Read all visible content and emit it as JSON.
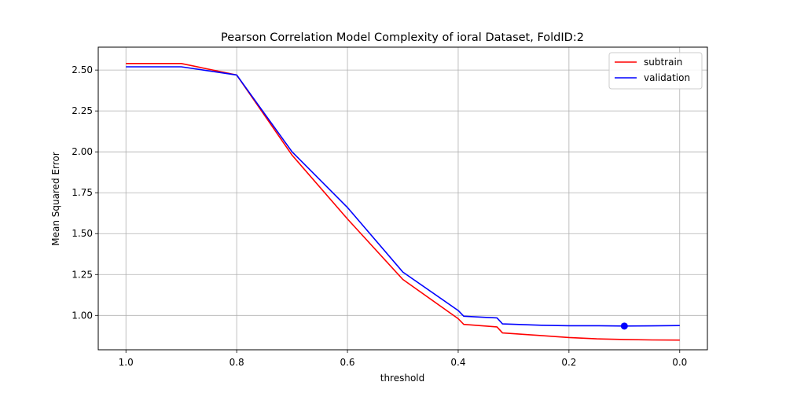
{
  "chart_data": {
    "type": "line",
    "title": "Pearson Correlation Model Complexity of ioral Dataset, FoldID:2",
    "xlabel": "threshold",
    "ylabel": "Mean Squared Error",
    "xlim": [
      1.05,
      -0.05
    ],
    "ylim": [
      0.79,
      2.64
    ],
    "x_inverted": true,
    "grid": true,
    "legend_position": "top-right",
    "x_ticks": [
      1.0,
      0.8,
      0.6,
      0.4,
      0.2,
      0.0
    ],
    "x_tick_labels": [
      "1.0",
      "0.8",
      "0.6",
      "0.4",
      "0.2",
      "0.0"
    ],
    "y_ticks": [
      1.0,
      1.25,
      1.5,
      1.75,
      2.0,
      2.25,
      2.5
    ],
    "y_tick_labels": [
      "1.00",
      "1.25",
      "1.50",
      "1.75",
      "2.00",
      "2.25",
      "2.50"
    ],
    "series": [
      {
        "name": "subtrain",
        "color": "#ff0000",
        "x": [
          1.0,
          0.9,
          0.8,
          0.7,
          0.6,
          0.5,
          0.4,
          0.39,
          0.33,
          0.32,
          0.25,
          0.2,
          0.15,
          0.1,
          0.05,
          0.0
        ],
        "y": [
          2.54,
          2.54,
          2.47,
          1.98,
          1.59,
          1.22,
          0.98,
          0.945,
          0.93,
          0.893,
          0.877,
          0.865,
          0.857,
          0.853,
          0.85,
          0.849
        ]
      },
      {
        "name": "validation",
        "color": "#0000ff",
        "x": [
          1.0,
          0.9,
          0.8,
          0.7,
          0.6,
          0.5,
          0.4,
          0.39,
          0.35,
          0.33,
          0.32,
          0.25,
          0.2,
          0.15,
          0.1,
          0.05,
          0.0
        ],
        "y": [
          2.52,
          2.52,
          2.47,
          2.0,
          1.66,
          1.265,
          1.03,
          0.995,
          0.988,
          0.985,
          0.948,
          0.94,
          0.937,
          0.937,
          0.935,
          0.936,
          0.938
        ]
      }
    ],
    "marker": {
      "series": "validation",
      "x": 0.1,
      "y": 0.935,
      "color": "#0000ff"
    }
  }
}
